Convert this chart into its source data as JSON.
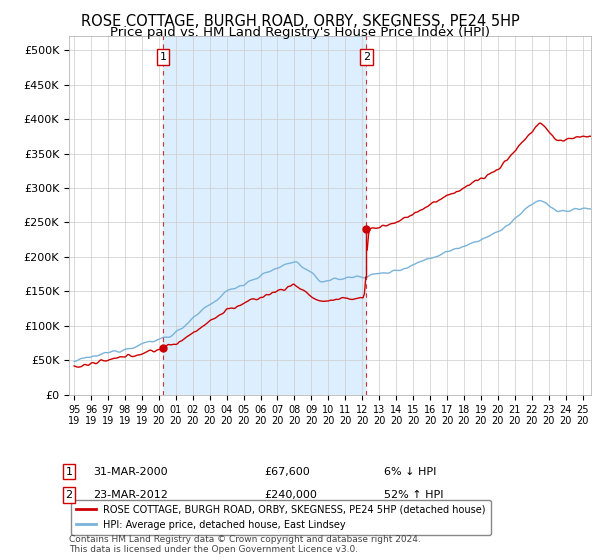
{
  "title": "ROSE COTTAGE, BURGH ROAD, ORBY, SKEGNESS, PE24 5HP",
  "subtitle": "Price paid vs. HM Land Registry's House Price Index (HPI)",
  "title_fontsize": 10.5,
  "subtitle_fontsize": 9.5,
  "ylabel_ticks": [
    "£0",
    "£50K",
    "£100K",
    "£150K",
    "£200K",
    "£250K",
    "£300K",
    "£350K",
    "£400K",
    "£450K",
    "£500K"
  ],
  "ytick_values": [
    0,
    50000,
    100000,
    150000,
    200000,
    250000,
    300000,
    350000,
    400000,
    450000,
    500000
  ],
  "ylim": [
    0,
    520000
  ],
  "xlim_start": 1994.7,
  "xlim_end": 2025.5,
  "hpi_color": "#7ab3d9",
  "price_color": "#cc0000",
  "shade_color": "#ddeeff",
  "marker1_year": 2000.25,
  "marker1_price": 67600,
  "marker2_year": 2012.25,
  "marker2_price": 240000,
  "annotation1_label": "1",
  "annotation2_label": "2",
  "legend_label1": "ROSE COTTAGE, BURGH ROAD, ORBY, SKEGNESS, PE24 5HP (detached house)",
  "legend_label2": "HPI: Average price, detached house, East Lindsey",
  "table_row1": [
    "1",
    "31-MAR-2000",
    "£67,600",
    "6% ↓ HPI"
  ],
  "table_row2": [
    "2",
    "23-MAR-2012",
    "£240,000",
    "52% ↑ HPI"
  ],
  "footer": "Contains HM Land Registry data © Crown copyright and database right 2024.\nThis data is licensed under the Open Government Licence v3.0.",
  "background_color": "#ffffff",
  "grid_color": "#cccccc"
}
